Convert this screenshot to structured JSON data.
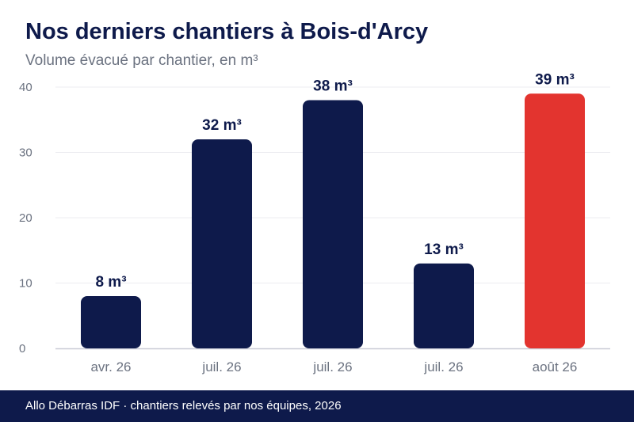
{
  "header": {
    "title": "Nos derniers chantiers à Bois-d'Arcy",
    "subtitle": "Volume évacué par chantier, en m³"
  },
  "footer": {
    "text": "Allo Débarras IDF · chantiers relevés par nos équipes, 2026"
  },
  "colors": {
    "bar": "#0e1a4b",
    "highlight": "#e3342f",
    "axis_text": "#6b7280",
    "grid": "#ececf0",
    "baseline": "#c9cbd6"
  },
  "chart_data": {
    "type": "bar",
    "categories": [
      "avr. 26",
      "juil. 26",
      "juil. 26",
      "juil. 26",
      "août 26"
    ],
    "values": [
      8,
      32,
      38,
      13,
      39
    ],
    "data_labels": [
      "8 m³",
      "32 m³",
      "38 m³",
      "13 m³",
      "39 m³"
    ],
    "highlight_index": 4,
    "title": "Nos derniers chantiers à Bois-d'Arcy",
    "subtitle": "Volume évacué par chantier, en m³",
    "xlabel": "",
    "ylabel": "",
    "ylim": [
      0,
      40
    ],
    "yticks": [
      0,
      10,
      20,
      30,
      40
    ],
    "grid": true,
    "legend": "none"
  }
}
